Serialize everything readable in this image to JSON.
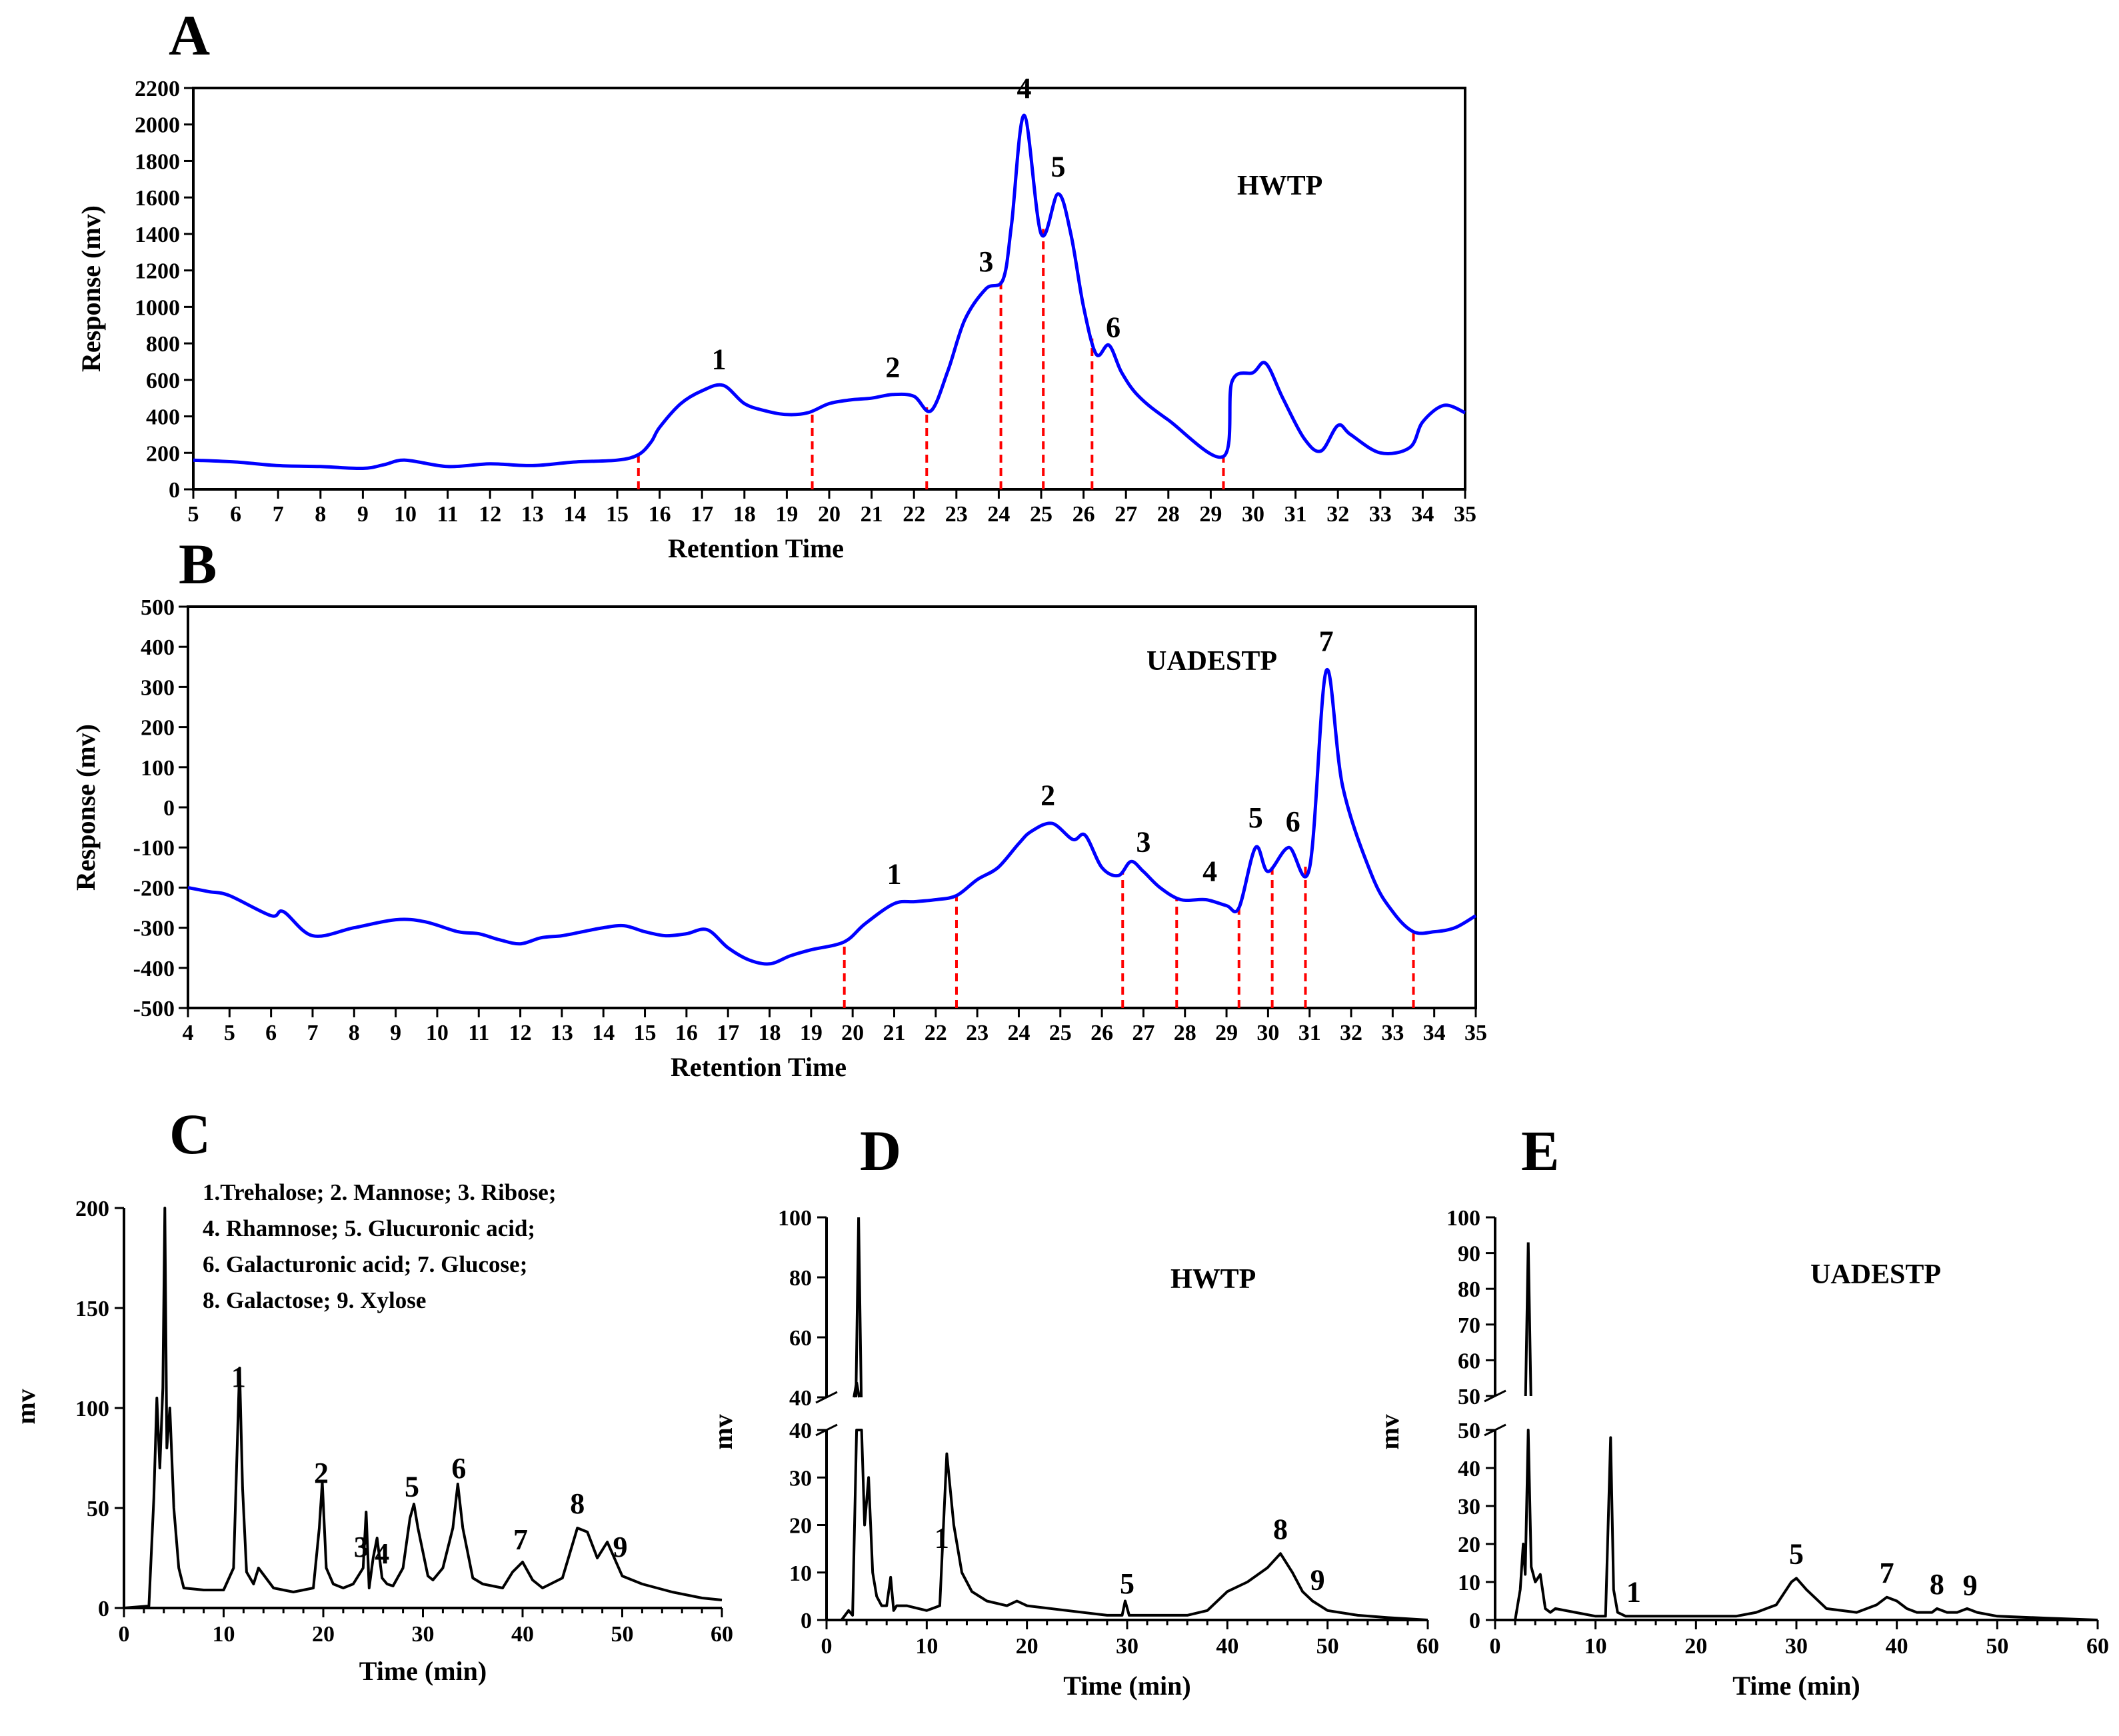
{
  "chart_data": [
    {
      "type": "line",
      "panel": "A",
      "sample_label": "HWTP",
      "xlabel": "Retention Time",
      "ylabel": "Response (mv)",
      "xlim": [
        5,
        35
      ],
      "ylim": [
        0,
        2200
      ],
      "x_ticks": [
        5,
        6,
        7,
        8,
        9,
        10,
        11,
        12,
        13,
        14,
        15,
        16,
        17,
        18,
        19,
        20,
        21,
        22,
        23,
        24,
        25,
        26,
        27,
        28,
        29,
        30,
        31,
        32,
        33,
        34,
        35
      ],
      "y_ticks": [
        0,
        200,
        400,
        600,
        800,
        1000,
        1200,
        1400,
        1600,
        1800,
        2000,
        2200
      ],
      "line_color": "#0000ff",
      "x": [
        5,
        6,
        7,
        8,
        9,
        9.5,
        10,
        11,
        12,
        13,
        14,
        15,
        15.5,
        15.8,
        16,
        16.5,
        17,
        17.5,
        18,
        18.5,
        19,
        19.5,
        20,
        20.5,
        21,
        21.5,
        22,
        22.4,
        22.8,
        23.2,
        23.7,
        24.1,
        24.3,
        24.6,
        25,
        25.4,
        25.7,
        26,
        26.3,
        26.6,
        26.9,
        27.3,
        28,
        29.3,
        29.5,
        30,
        30.3,
        30.7,
        31.2,
        31.6,
        32,
        32.3,
        33,
        33.7,
        34,
        34.5,
        35
      ],
      "y": [
        160,
        150,
        130,
        125,
        115,
        135,
        160,
        125,
        140,
        130,
        150,
        160,
        190,
        260,
        340,
        470,
        540,
        570,
        470,
        430,
        410,
        420,
        470,
        490,
        500,
        520,
        510,
        430,
        650,
        930,
        1100,
        1150,
        1450,
        2050,
        1400,
        1620,
        1400,
        1000,
        740,
        790,
        640,
        510,
        380,
        180,
        590,
        640,
        690,
        500,
        280,
        210,
        350,
        300,
        200,
        230,
        370,
        460,
        420
      ],
      "peak_labels": [
        {
          "label": "1",
          "x": 17.4
        },
        {
          "label": "2",
          "x": 21.5
        },
        {
          "label": "3",
          "x": 23.7
        },
        {
          "label": "4",
          "x": 24.6
        },
        {
          "label": "5",
          "x": 25.4
        },
        {
          "label": "6",
          "x": 26.7
        }
      ],
      "dividers_x": [
        15.5,
        19.6,
        22.3,
        24.05,
        25.05,
        26.2,
        29.3
      ],
      "divider_color": "#ff0000"
    },
    {
      "type": "line",
      "panel": "B",
      "sample_label": "UADESTP",
      "xlabel": "Retention Time",
      "ylabel": "Response (mv)",
      "xlim": [
        4,
        35
      ],
      "ylim": [
        -500,
        500
      ],
      "x_ticks": [
        4,
        5,
        6,
        7,
        8,
        9,
        10,
        11,
        12,
        13,
        14,
        15,
        16,
        17,
        18,
        19,
        20,
        21,
        22,
        23,
        24,
        25,
        26,
        27,
        28,
        29,
        30,
        31,
        32,
        33,
        34,
        35
      ],
      "y_ticks": [
        -500,
        -400,
        -300,
        -200,
        -100,
        0,
        100,
        200,
        300,
        400,
        500
      ],
      "line_color": "#0000ff",
      "x": [
        4,
        4.5,
        5,
        6,
        6.3,
        7,
        8,
        9,
        9.7,
        10.5,
        11,
        11.5,
        12,
        12.5,
        13,
        13.5,
        14,
        14.5,
        15,
        15.5,
        16,
        16.5,
        17,
        17.5,
        18,
        18.5,
        19,
        19.8,
        20.3,
        21,
        21.5,
        22,
        22.5,
        23,
        23.5,
        24,
        24.3,
        24.8,
        25.3,
        25.6,
        26,
        26.4,
        26.7,
        27,
        27.4,
        27.9,
        28.5,
        29,
        29.3,
        29.7,
        30,
        30.5,
        31,
        31.4,
        31.8,
        32.5,
        33,
        33.5,
        34,
        34.5,
        35
      ],
      "y": [
        -200,
        -210,
        -220,
        -270,
        -260,
        -320,
        -300,
        -280,
        -285,
        -310,
        -315,
        -330,
        -340,
        -325,
        -320,
        -310,
        -300,
        -295,
        -310,
        -320,
        -315,
        -305,
        -350,
        -380,
        -390,
        -370,
        -355,
        -335,
        -290,
        -240,
        -235,
        -230,
        -220,
        -180,
        -150,
        -90,
        -60,
        -40,
        -80,
        -70,
        -150,
        -170,
        -135,
        -160,
        -200,
        -230,
        -230,
        -245,
        -250,
        -100,
        -160,
        -100,
        -150,
        340,
        50,
        -170,
        -260,
        -310,
        -310,
        -300,
        -270
      ],
      "peak_labels": [
        {
          "label": "1",
          "x": 21
        },
        {
          "label": "2",
          "x": 24.7
        },
        {
          "label": "3",
          "x": 27
        },
        {
          "label": "4",
          "x": 28.6
        },
        {
          "label": "5",
          "x": 29.7
        },
        {
          "label": "6",
          "x": 30.6
        },
        {
          "label": "7",
          "x": 31.4
        }
      ],
      "dividers_x": [
        19.8,
        22.5,
        26.5,
        27.8,
        29.3,
        30.1,
        30.9,
        33.5
      ],
      "divider_color": "#ff0000"
    },
    {
      "type": "line",
      "panel": "C",
      "sample_label": "",
      "xlabel": "Time (min)",
      "ylabel": "mv",
      "xlim": [
        0,
        60
      ],
      "ylim": [
        0,
        200
      ],
      "x_ticks": [
        0,
        10,
        20,
        30,
        40,
        50,
        60
      ],
      "y_ticks": [
        0,
        50,
        100,
        150,
        200
      ],
      "line_color": "#000000",
      "x": [
        0,
        2.5,
        3,
        3.3,
        3.6,
        3.9,
        4.1,
        4.3,
        4.6,
        5,
        5.5,
        6,
        8,
        10,
        11,
        11.6,
        11.9,
        12.3,
        13,
        13.5,
        15,
        17,
        19,
        19.6,
        19.9,
        20.3,
        21,
        22,
        23,
        24,
        24.3,
        24.6,
        25,
        25.4,
        25.9,
        26.4,
        27,
        28,
        28.7,
        29.1,
        29.5,
        30.5,
        31,
        32,
        33,
        33.5,
        34,
        35,
        36,
        38,
        39,
        40,
        41,
        42,
        44,
        45.5,
        46.5,
        47.5,
        48.5,
        50,
        52,
        55,
        58,
        60
      ],
      "y": [
        0,
        1,
        55,
        105,
        70,
        110,
        200,
        80,
        100,
        50,
        20,
        10,
        9,
        9,
        20,
        120,
        60,
        18,
        12,
        20,
        10,
        8,
        10,
        40,
        63,
        20,
        12,
        10,
        12,
        20,
        48,
        10,
        25,
        35,
        15,
        12,
        11,
        20,
        45,
        52,
        40,
        16,
        14,
        20,
        40,
        62,
        40,
        15,
        12,
        10,
        18,
        23,
        14,
        10,
        15,
        40,
        38,
        25,
        33,
        16,
        12,
        8,
        5,
        4
      ],
      "peak_labels": [
        {
          "label": "1",
          "x": 11.5
        },
        {
          "label": "2",
          "x": 19.8
        },
        {
          "label": "3",
          "x": 23.8
        },
        {
          "label": "4",
          "x": 25.9
        },
        {
          "label": "5",
          "x": 28.9
        },
        {
          "label": "6",
          "x": 33.6
        },
        {
          "label": "7",
          "x": 39.8
        },
        {
          "label": "8",
          "x": 45.5
        },
        {
          "label": "9",
          "x": 49.8
        }
      ],
      "legend_lines": [
        "1.Trehalose; 2. Mannose; 3. Ribose;",
        "4. Rhamnose; 5. Glucuronic acid;",
        "6. Galacturonic acid; 7. Glucose;",
        "8. Galactose; 9. Xylose"
      ]
    },
    {
      "type": "line",
      "panel": "D",
      "sample_label": "HWTP",
      "xlabel": "Time (min)",
      "ylabel": "mv",
      "xlim": [
        0,
        60
      ],
      "y_break": true,
      "ylim_lower": [
        0,
        40
      ],
      "ylim_upper": [
        40,
        100
      ],
      "x_ticks": [
        0,
        10,
        20,
        30,
        40,
        50,
        60
      ],
      "y_ticks_lower": [
        0,
        10,
        20,
        30,
        40
      ],
      "y_ticks_upper": [
        40,
        60,
        80,
        100
      ],
      "line_color": "#000000",
      "x": [
        0,
        1.5,
        2.2,
        2.6,
        3,
        3.2,
        3.5,
        3.8,
        4.2,
        4.6,
        5,
        5.5,
        6,
        6.4,
        6.7,
        7,
        8,
        10,
        11.3,
        12,
        12.7,
        13.5,
        14.5,
        16,
        18,
        19,
        20,
        24,
        28,
        29.5,
        29.8,
        30.2,
        32,
        36,
        38,
        40,
        42,
        44,
        45.3,
        46.5,
        47.5,
        48.5,
        50,
        53,
        56,
        60
      ],
      "y": [
        0,
        0,
        2,
        1,
        45,
        100,
        40,
        20,
        30,
        10,
        5,
        3,
        3,
        9,
        2,
        3,
        3,
        2,
        3,
        35,
        20,
        10,
        6,
        4,
        3,
        4,
        3,
        2,
        1,
        1,
        4,
        1,
        1,
        1,
        2,
        6,
        8,
        11,
        14,
        10,
        6,
        4,
        2,
        1,
        0.5,
        0
      ],
      "peak_labels": [
        {
          "label": "1",
          "x": 11.5
        },
        {
          "label": "5",
          "x": 30
        },
        {
          "label": "8",
          "x": 45.3
        },
        {
          "label": "9",
          "x": 49
        }
      ]
    },
    {
      "type": "line",
      "panel": "E",
      "sample_label": "UADESTP",
      "xlabel": "Time (min)",
      "ylabel": "mv",
      "xlim": [
        0,
        60
      ],
      "y_break": true,
      "ylim_lower": [
        0,
        50
      ],
      "ylim_upper": [
        50,
        100
      ],
      "x_ticks": [
        0,
        10,
        20,
        30,
        40,
        50,
        60
      ],
      "y_ticks_lower": [
        0,
        10,
        20,
        30,
        40,
        50
      ],
      "y_ticks_upper": [
        50,
        60,
        70,
        80,
        90,
        100
      ],
      "line_color": "#000000",
      "x": [
        0,
        2,
        2.5,
        2.8,
        3,
        3.3,
        3.6,
        4,
        4.5,
        5,
        5.5,
        6,
        8,
        10,
        11,
        11.5,
        11.8,
        12.2,
        13,
        15,
        20,
        24,
        26,
        28,
        29.5,
        30,
        31,
        33,
        36,
        38,
        39,
        40,
        41,
        42,
        43.5,
        44,
        45,
        46,
        47,
        48,
        50,
        55,
        60
      ],
      "y": [
        0,
        0,
        8,
        20,
        12,
        93,
        14,
        10,
        12,
        3,
        2,
        3,
        2,
        1,
        1,
        48,
        8,
        2,
        1,
        1,
        1,
        1,
        2,
        4,
        10,
        11,
        8,
        3,
        2,
        4,
        6,
        5,
        3,
        2,
        2,
        3,
        2,
        2,
        3,
        2,
        1,
        0.5,
        0
      ],
      "peak_labels": [
        {
          "label": "1",
          "x": 13.8
        },
        {
          "label": "5",
          "x": 30
        },
        {
          "label": "7",
          "x": 39
        },
        {
          "label": "8",
          "x": 44
        },
        {
          "label": "9",
          "x": 47.3
        }
      ]
    }
  ]
}
